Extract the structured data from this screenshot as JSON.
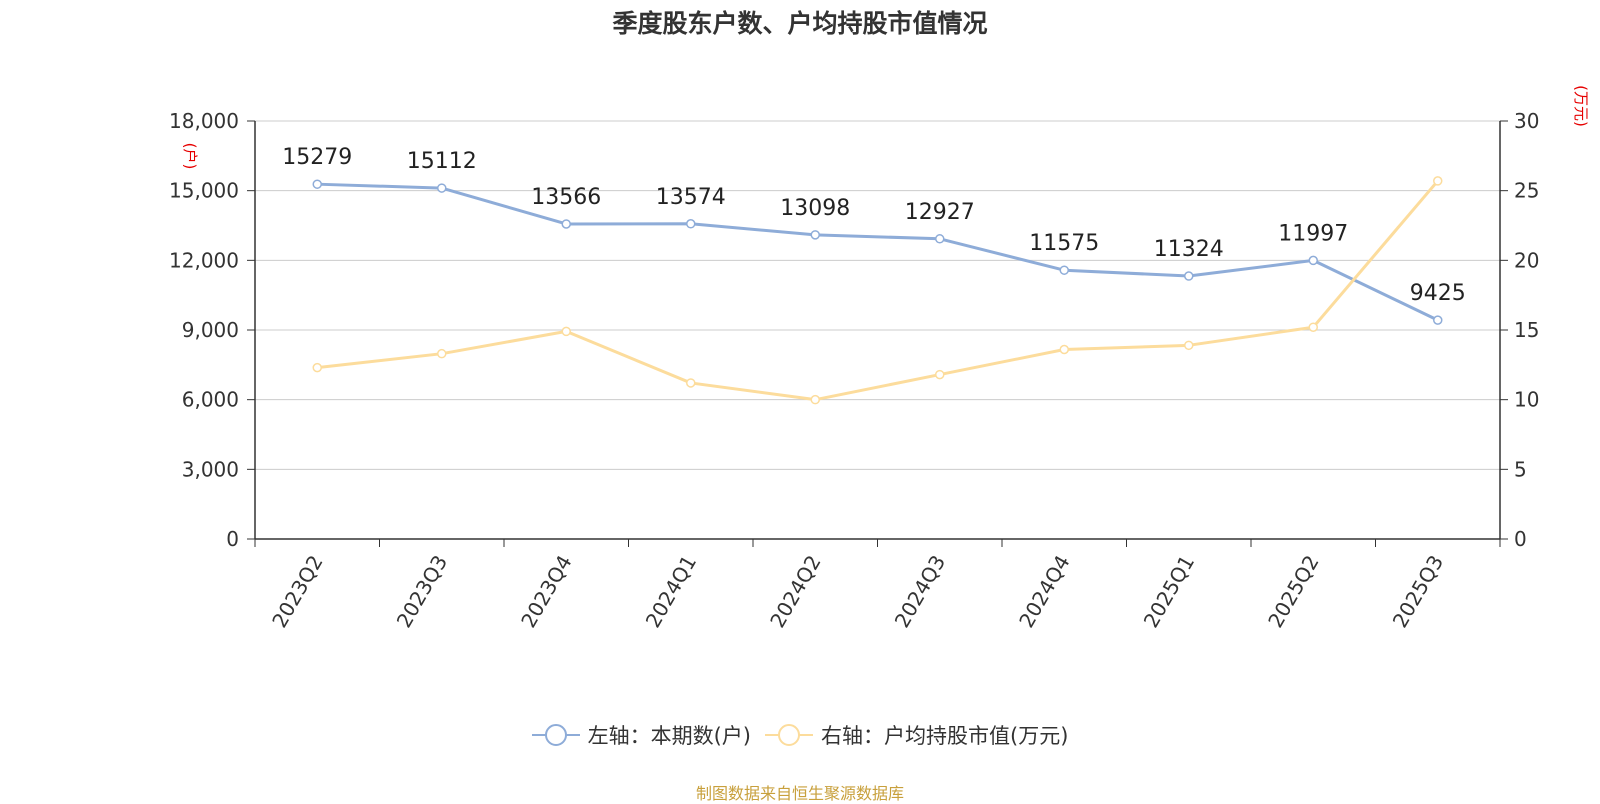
{
  "title": "季度股东户数、户均持股市值情况",
  "source_note": "制图数据来自恒生聚源数据库",
  "colors": {
    "left_series": "#8eacd8",
    "right_series": "#fcdc9c",
    "axis": "#333333",
    "unit": "#e60000",
    "source": "#c8a03c"
  },
  "chart_data": {
    "type": "line",
    "title": "季度股东户数、户均持股市值情况",
    "categories": [
      "2023Q2",
      "2023Q3",
      "2023Q4",
      "2024Q1",
      "2024Q2",
      "2024Q3",
      "2024Q4",
      "2025Q1",
      "2025Q2",
      "2025Q3"
    ],
    "y_left": {
      "unit": "(户)",
      "ylim": [
        0,
        18000
      ],
      "ticks": [
        0,
        3000,
        6000,
        9000,
        12000,
        15000,
        18000
      ],
      "tick_labels": [
        "0",
        "3,000",
        "6,000",
        "9,000",
        "12,000",
        "15,000",
        "18,000"
      ]
    },
    "y_right": {
      "unit": "(万元)",
      "ylim": [
        0,
        30
      ],
      "ticks": [
        0,
        5,
        10,
        15,
        20,
        25,
        30
      ],
      "tick_labels": [
        "0",
        "5",
        "10",
        "15",
        "20",
        "25",
        "30"
      ]
    },
    "grid": true,
    "legend_position": "bottom",
    "series": [
      {
        "name": "左轴：本期数(户)",
        "axis": "left",
        "color": "#8eacd8",
        "values": [
          15279,
          15112,
          13566,
          13574,
          13098,
          12927,
          11575,
          11324,
          11997,
          9425
        ],
        "labels": [
          "15279",
          "15112",
          "13566",
          "13574",
          "13098",
          "12927",
          "11575",
          "11324",
          "11997",
          "9425"
        ]
      },
      {
        "name": "右轴：户均持股市值(万元)",
        "axis": "right",
        "color": "#fcdc9c",
        "values": [
          12.3,
          13.3,
          14.9,
          11.2,
          10.0,
          11.8,
          13.6,
          13.9,
          15.2,
          25.7
        ]
      }
    ]
  }
}
